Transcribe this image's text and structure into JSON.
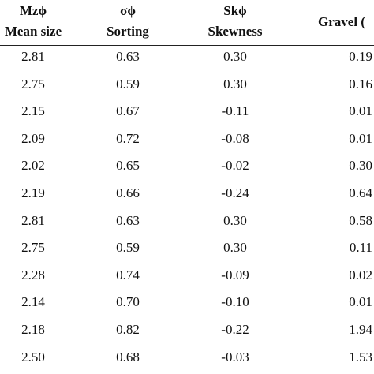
{
  "table": {
    "header": [
      {
        "symbol": "Mzϕ",
        "label": "Mean size"
      },
      {
        "symbol": "σϕ",
        "label": "Sorting"
      },
      {
        "symbol": "Skϕ",
        "label": "Skewness"
      },
      {
        "symbol": "",
        "label": "Gravel ("
      }
    ],
    "rows": [
      [
        "2.81",
        "0.63",
        "0.30",
        "0.19"
      ],
      [
        "2.75",
        "0.59",
        "0.30",
        "0.16"
      ],
      [
        "2.15",
        "0.67",
        "-0.11",
        "0.01"
      ],
      [
        "2.09",
        "0.72",
        "-0.08",
        "0.01"
      ],
      [
        "2.02",
        "0.65",
        "-0.02",
        "0.30"
      ],
      [
        "2.19",
        "0.66",
        "-0.24",
        "0.64"
      ],
      [
        "2.81",
        "0.63",
        "0.30",
        "0.58"
      ],
      [
        "2.75",
        "0.59",
        "0.30",
        "0.11"
      ],
      [
        "2.28",
        "0.74",
        "-0.09",
        "0.02"
      ],
      [
        "2.14",
        "0.70",
        "-0.10",
        "0.01"
      ],
      [
        "2.18",
        "0.82",
        "-0.22",
        "1.94"
      ],
      [
        "2.50",
        "0.68",
        "-0.03",
        "1.53"
      ]
    ]
  }
}
